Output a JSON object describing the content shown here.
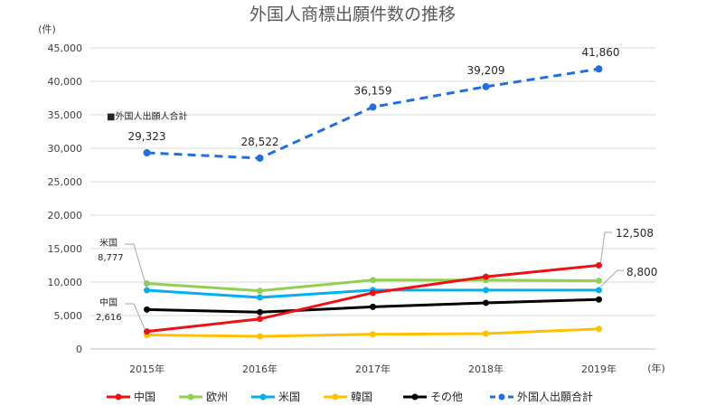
{
  "chart_data": {
    "type": "line",
    "title": "外国人商標出願件数の推移",
    "ylabel": "(件)",
    "xlabel": "(年)",
    "ylim": [
      0,
      45000
    ],
    "yticks": [
      0,
      5000,
      10000,
      15000,
      20000,
      25000,
      30000,
      35000,
      40000,
      45000
    ],
    "ytick_labels": [
      "0",
      "5,000",
      "10,000",
      "15,000",
      "20,000",
      "25,000",
      "30,000",
      "35,000",
      "40,000",
      "45,000"
    ],
    "grid": true,
    "legend_position": "bottom",
    "categories": [
      "2015年",
      "2016年",
      "2017年",
      "2018年",
      "2019年"
    ],
    "series": [
      {
        "name": "中国",
        "color": "#ee1111",
        "style": "solid",
        "values": [
          2616,
          4500,
          8400,
          10800,
          12508
        ]
      },
      {
        "name": "欧州",
        "color": "#92d050",
        "style": "solid",
        "values": [
          9800,
          8700,
          10300,
          10300,
          10200
        ]
      },
      {
        "name": "米国",
        "color": "#00b0f0",
        "style": "solid",
        "values": [
          8777,
          7700,
          8800,
          8800,
          8800
        ]
      },
      {
        "name": "韓国",
        "color": "#ffc000",
        "style": "solid",
        "values": [
          2100,
          1900,
          2200,
          2300,
          3000
        ]
      },
      {
        "name": "その他",
        "color": "#000000",
        "style": "solid",
        "values": [
          5900,
          5500,
          6300,
          6900,
          7400
        ]
      },
      {
        "name": "外国人出願合計",
        "color": "#1f6fe0",
        "style": "dashed",
        "values": [
          29323,
          28522,
          36159,
          39209,
          41860
        ]
      }
    ],
    "total_labels": [
      "29,323",
      "28,522",
      "36,159",
      "39,209",
      "41,860"
    ],
    "annotations": {
      "total_note": "■外国人出願人合計",
      "us_name": "米国",
      "us_value": "8,777",
      "china_name": "中国",
      "china_value": "2,616",
      "china_end": "12,508",
      "us_end": "8,800"
    }
  }
}
